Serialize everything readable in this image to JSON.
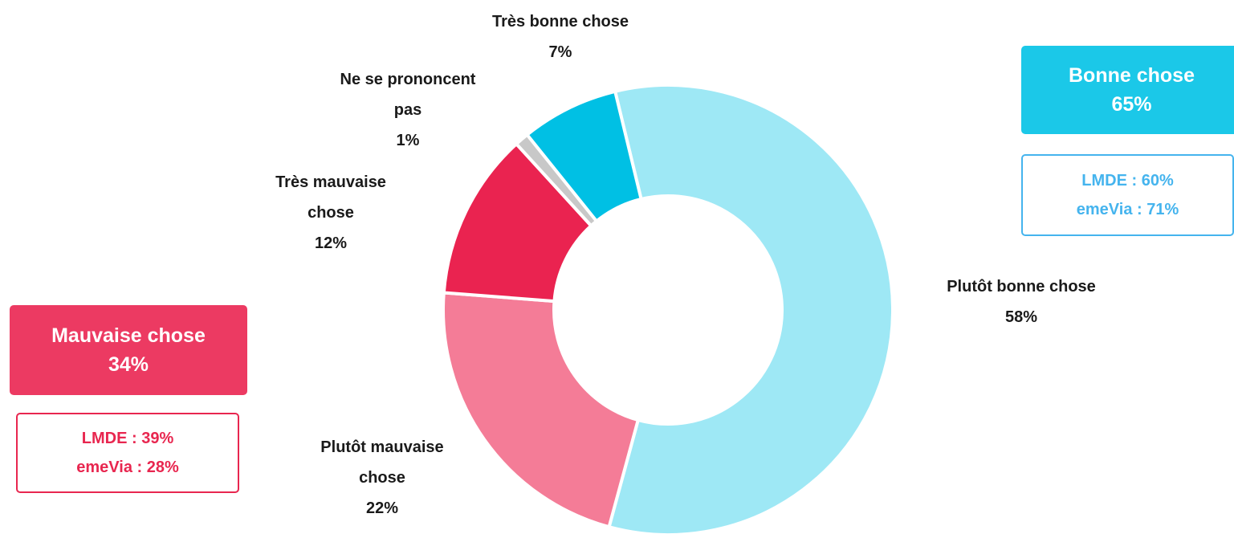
{
  "chart_data": {
    "type": "donut",
    "categories": [
      "Plutôt bonne chose",
      "Plutôt mauvaise chose",
      "Très mauvaise chose",
      "Ne se prononcent pas",
      "Très bonne chose"
    ],
    "values": [
      58,
      22,
      12,
      1,
      7
    ],
    "value_labels": [
      "58%",
      "22%",
      "12%",
      "1%",
      "7%"
    ],
    "colors": [
      "#9ee8f5",
      "#f47c97",
      "#ea2350",
      "#c8c8c8",
      "#00c0e4"
    ],
    "summaries": [
      {
        "title": "Bonne chose",
        "value_label": "65%",
        "details": [
          "LMDE : 60%",
          "emeVia : 71%"
        ],
        "color": "#1bc8e8",
        "detail_color": "#45b4ee"
      },
      {
        "title": "Mauvaise chose",
        "value_label": "34%",
        "details": [
          "LMDE : 39%",
          "emeVia : 28%"
        ],
        "color": "#ec3a62",
        "detail_color": "#e8264f"
      }
    ]
  }
}
